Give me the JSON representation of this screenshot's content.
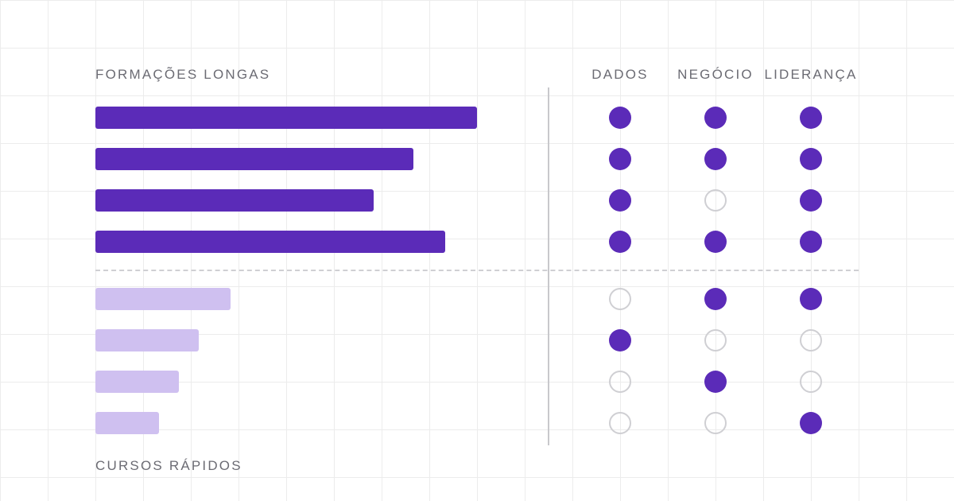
{
  "labels": {
    "long_programs": "FORMAÇÕES LONGAS",
    "short_courses": "CURSOS RÁPIDOS"
  },
  "columns": [
    "DADOS",
    "NEGÓCIO",
    "LIDERANÇA"
  ],
  "colors": {
    "long_bar": "#5b2bb8",
    "short_bar": "#cfc0f0",
    "dot_on": "#5b2bb8",
    "dot_off_border": "#cfcfd3"
  },
  "groups": [
    {
      "group": "long_programs",
      "rows": [
        {
          "length": 1.0,
          "marks": [
            true,
            true,
            true
          ]
        },
        {
          "length": 0.833,
          "marks": [
            true,
            true,
            true
          ]
        },
        {
          "length": 0.729,
          "marks": [
            true,
            false,
            true
          ]
        },
        {
          "length": 0.917,
          "marks": [
            true,
            true,
            true
          ]
        }
      ]
    },
    {
      "group": "short_courses",
      "rows": [
        {
          "length": 0.354,
          "marks": [
            false,
            true,
            true
          ]
        },
        {
          "length": 0.271,
          "marks": [
            true,
            false,
            false
          ]
        },
        {
          "length": 0.219,
          "marks": [
            false,
            true,
            false
          ]
        },
        {
          "length": 0.167,
          "marks": [
            false,
            false,
            true
          ]
        }
      ]
    }
  ]
}
